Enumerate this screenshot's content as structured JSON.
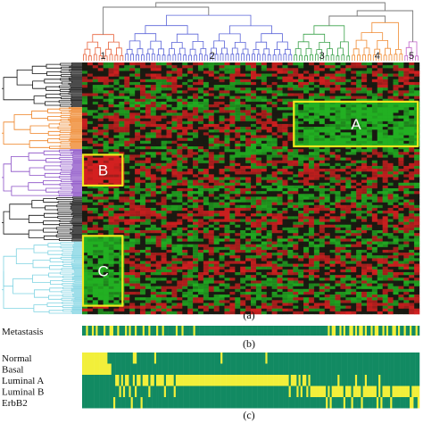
{
  "chart_data": {
    "type": "heatmap",
    "title": "",
    "xlabel": "",
    "ylabel": "",
    "colors": {
      "high": "#d32020",
      "low": "#22b022",
      "mid": "#1a1a12",
      "box": "#f0e61e",
      "track_on": "#f2ef3a",
      "track_off": "#128a62"
    },
    "column_clusters": [
      {
        "label": "1",
        "color": "#e8613a",
        "span": [
          0,
          8
        ]
      },
      {
        "label": "2",
        "color": "#5a64d8",
        "span": [
          8,
          40
        ]
      },
      {
        "label": "3",
        "color": "#3aa24a",
        "span": [
          40,
          51
        ]
      },
      {
        "label": "4",
        "color": "#f08a30",
        "span": [
          51,
          61
        ]
      },
      {
        "label": "5",
        "color": "#c060c8",
        "span": [
          61,
          64
        ]
      }
    ],
    "row_clusters": [
      {
        "color": "#111111",
        "span": [
          0,
          16
        ]
      },
      {
        "color": "#ee8122",
        "span": [
          16,
          31
        ]
      },
      {
        "color": "#8a4fc6",
        "span": [
          31,
          48
        ]
      },
      {
        "color": "#111111",
        "span": [
          48,
          64
        ]
      },
      {
        "color": "#7fd3e2",
        "span": [
          64,
          90
        ]
      }
    ],
    "boxes": [
      {
        "label": "A",
        "col_span": [
          40,
          64
        ],
        "row_span": [
          14,
          30
        ]
      },
      {
        "label": "B",
        "col_span": [
          0,
          8
        ],
        "row_span": [
          33,
          44
        ]
      },
      {
        "label": "C",
        "col_span": [
          0,
          8
        ],
        "row_span": [
          62,
          87
        ]
      }
    ],
    "panel_labels": {
      "heatmap": "(a)",
      "metastasis": "(b)",
      "subtypes": "(c)"
    },
    "metastasis_track": {
      "label": "Metastasis",
      "values": [
        0,
        0,
        1,
        0,
        0,
        1,
        0,
        1,
        0,
        0,
        0,
        1,
        0,
        0,
        1,
        1,
        0,
        0,
        1,
        0,
        0,
        0,
        1,
        0,
        1,
        0,
        0,
        1,
        0,
        0,
        0,
        1,
        0,
        0,
        1,
        0,
        0,
        0,
        1,
        0,
        0,
        1,
        0,
        0,
        0,
        0,
        0,
        0,
        1,
        0,
        0,
        1,
        0,
        0,
        0,
        0,
        0,
        1,
        0,
        0,
        0,
        0,
        0,
        0,
        0,
        0,
        0,
        0,
        0,
        0,
        0,
        0,
        0,
        0,
        0,
        0,
        0,
        0,
        0,
        0,
        0,
        0,
        0,
        0,
        0,
        0,
        0,
        0,
        0,
        0,
        0,
        0,
        0,
        0,
        0,
        0,
        0,
        0,
        0,
        0,
        0,
        0,
        0,
        0,
        0,
        0,
        0,
        0,
        0,
        0,
        0,
        0,
        0,
        0,
        0,
        0,
        0,
        0,
        0,
        0,
        0,
        0,
        0,
        0,
        0,
        0,
        1,
        0,
        1,
        1,
        0,
        0,
        1,
        0,
        1,
        0,
        0,
        1,
        1,
        0,
        1,
        0,
        1,
        1,
        0,
        1,
        0,
        0,
        1,
        0,
        1,
        1,
        0,
        0,
        1,
        0,
        1,
        0,
        0,
        1,
        1,
        0,
        1,
        0,
        0,
        1,
        0,
        0,
        1,
        0,
        0,
        1,
        0
      ]
    },
    "subtype_tracks": [
      {
        "label": "Normal",
        "values": [
          1,
          1,
          1,
          1,
          1,
          1,
          1,
          1,
          1,
          1,
          1,
          1,
          1,
          0,
          0,
          0,
          0,
          0,
          0,
          0,
          0,
          0,
          0,
          0,
          0,
          0,
          1,
          1,
          0,
          0,
          0,
          0,
          0,
          0,
          0,
          0,
          0,
          1,
          0,
          0,
          0,
          0,
          0,
          0,
          0,
          0,
          0,
          0,
          0,
          0,
          0,
          0,
          0,
          0,
          0,
          0,
          0,
          0,
          0,
          0,
          0,
          0,
          0,
          0,
          0,
          0,
          0,
          0,
          0,
          0,
          0,
          1,
          0,
          0,
          0,
          0,
          0,
          0,
          0,
          0,
          0,
          0,
          0,
          0,
          0,
          0,
          0,
          0,
          0,
          0,
          0,
          0,
          0,
          0,
          1,
          0,
          0,
          0,
          0,
          0,
          0,
          0,
          0,
          0,
          0,
          0,
          0,
          0,
          0,
          0,
          0,
          0,
          0,
          0,
          0,
          0,
          0,
          0,
          0,
          0,
          0,
          0,
          0,
          0,
          0,
          0,
          0,
          0,
          0,
          0,
          0,
          0,
          0,
          0,
          0,
          0,
          0,
          0,
          0,
          0,
          0,
          0,
          0,
          0,
          0,
          0,
          0,
          0,
          0,
          0,
          0,
          0,
          0,
          0,
          0,
          0,
          0,
          0,
          0,
          0,
          0,
          0,
          0,
          0,
          0,
          0,
          0,
          0,
          0,
          0,
          0,
          0,
          0
        ]
      },
      {
        "label": "Basal",
        "values": [
          1,
          1,
          1,
          1,
          1,
          1,
          1,
          1,
          1,
          1,
          1,
          1,
          1,
          1,
          1,
          0,
          0,
          0,
          0,
          0,
          0,
          0,
          0,
          0,
          0,
          0,
          0,
          0,
          0,
          0,
          0,
          0,
          0,
          0,
          0,
          0,
          0,
          0,
          0,
          0,
          0,
          0,
          0,
          0,
          0,
          0,
          0,
          0,
          0,
          0,
          0,
          0,
          0,
          0,
          0,
          0,
          0,
          0,
          0,
          0,
          0,
          0,
          0,
          0,
          0,
          0,
          0,
          0,
          0,
          0,
          0,
          0,
          0,
          0,
          0,
          0,
          0,
          0,
          0,
          0,
          0,
          0,
          0,
          0,
          0,
          0,
          0,
          0,
          0,
          0,
          0,
          0,
          0,
          0,
          0,
          0,
          0,
          0,
          0,
          0,
          0,
          0,
          0,
          0,
          0,
          0,
          0,
          0,
          0,
          0,
          0,
          0,
          0,
          0,
          0,
          0,
          0,
          0,
          0,
          0,
          0,
          0,
          0,
          0,
          0,
          0,
          0,
          0,
          0,
          0,
          0,
          0,
          0,
          0,
          0,
          0,
          0,
          0,
          0,
          0,
          0,
          0,
          0,
          0,
          0,
          0,
          0,
          0,
          0,
          0,
          0,
          0,
          0,
          0,
          0,
          0,
          0,
          0,
          0,
          0,
          0,
          0,
          0,
          0,
          0,
          0,
          0,
          0,
          0,
          0,
          0,
          0,
          0
        ]
      },
      {
        "label": "Luminal A",
        "values": [
          0,
          0,
          0,
          0,
          0,
          0,
          0,
          0,
          0,
          0,
          0,
          0,
          0,
          0,
          0,
          0,
          0,
          1,
          1,
          0,
          1,
          0,
          1,
          1,
          0,
          0,
          1,
          0,
          1,
          1,
          0,
          1,
          1,
          1,
          0,
          1,
          1,
          0,
          1,
          1,
          1,
          1,
          0,
          1,
          1,
          1,
          1,
          0,
          1,
          1,
          1,
          1,
          1,
          1,
          1,
          1,
          1,
          1,
          1,
          1,
          1,
          1,
          1,
          1,
          1,
          1,
          1,
          1,
          1,
          1,
          1,
          1,
          1,
          1,
          1,
          1,
          1,
          1,
          1,
          1,
          1,
          1,
          1,
          1,
          1,
          1,
          1,
          1,
          1,
          1,
          1,
          1,
          1,
          1,
          1,
          1,
          1,
          1,
          1,
          1,
          1,
          1,
          1,
          1,
          1,
          1,
          0,
          1,
          1,
          1,
          0,
          1,
          0,
          1,
          1,
          0,
          1,
          0,
          0,
          0,
          0,
          0,
          0,
          0,
          0,
          0,
          0,
          0,
          0,
          0,
          0,
          1,
          0,
          0,
          0,
          0,
          0,
          0,
          0,
          0,
          1,
          0,
          0,
          0,
          0,
          1,
          0,
          0,
          0,
          0,
          0,
          0,
          1,
          0,
          0,
          0,
          0,
          0,
          0,
          0,
          0,
          0,
          0,
          0,
          0,
          0,
          0,
          0,
          0,
          0,
          0,
          0,
          0
        ]
      },
      {
        "label": "Luminal B",
        "values": [
          0,
          0,
          0,
          0,
          0,
          0,
          0,
          0,
          0,
          0,
          0,
          0,
          0,
          0,
          0,
          0,
          0,
          0,
          0,
          1,
          0,
          1,
          0,
          0,
          1,
          0,
          0,
          1,
          0,
          0,
          0,
          0,
          0,
          0,
          1,
          0,
          0,
          0,
          0,
          0,
          0,
          0,
          1,
          0,
          0,
          0,
          0,
          1,
          0,
          0,
          0,
          0,
          0,
          0,
          0,
          0,
          0,
          0,
          0,
          0,
          0,
          0,
          0,
          0,
          0,
          0,
          0,
          0,
          0,
          0,
          0,
          0,
          0,
          0,
          0,
          0,
          0,
          0,
          0,
          0,
          0,
          0,
          0,
          0,
          0,
          0,
          0,
          0,
          0,
          0,
          0,
          0,
          0,
          0,
          0,
          0,
          0,
          0,
          0,
          0,
          0,
          0,
          0,
          0,
          0,
          0,
          1,
          0,
          0,
          0,
          1,
          0,
          1,
          0,
          0,
          1,
          0,
          1,
          1,
          1,
          1,
          1,
          1,
          1,
          1,
          0,
          1,
          0,
          1,
          1,
          1,
          1,
          1,
          1,
          0,
          1,
          1,
          1,
          0,
          1,
          1,
          1,
          1,
          0,
          1,
          1,
          1,
          1,
          1,
          1,
          1,
          0,
          1,
          0,
          1,
          1,
          1,
          1,
          0,
          1,
          1,
          1,
          1,
          1,
          1,
          1,
          1,
          1,
          0,
          1,
          1,
          1,
          1
        ]
      },
      {
        "label": "ErbB2",
        "values": [
          0,
          0,
          0,
          0,
          0,
          0,
          0,
          0,
          0,
          0,
          0,
          0,
          0,
          0,
          0,
          0,
          1,
          0,
          0,
          0,
          0,
          0,
          0,
          0,
          0,
          1,
          0,
          0,
          0,
          0,
          1,
          0,
          0,
          0,
          0,
          0,
          0,
          0,
          0,
          0,
          0,
          0,
          0,
          0,
          0,
          0,
          0,
          0,
          0,
          0,
          0,
          0,
          0,
          0,
          0,
          0,
          0,
          0,
          0,
          0,
          0,
          0,
          0,
          0,
          0,
          0,
          0,
          0,
          0,
          0,
          0,
          0,
          0,
          0,
          0,
          0,
          0,
          0,
          0,
          0,
          0,
          0,
          0,
          0,
          0,
          0,
          0,
          0,
          0,
          0,
          0,
          0,
          0,
          0,
          0,
          0,
          0,
          0,
          0,
          0,
          0,
          0,
          0,
          0,
          0,
          0,
          0,
          0,
          0,
          0,
          0,
          0,
          0,
          0,
          0,
          0,
          0,
          0,
          0,
          0,
          0,
          0,
          0,
          0,
          0,
          1,
          0,
          1,
          0,
          0,
          0,
          0,
          0,
          0,
          1,
          0,
          0,
          0,
          1,
          0,
          0,
          0,
          0,
          1,
          0,
          0,
          0,
          0,
          0,
          0,
          0,
          1,
          0,
          1,
          0,
          0,
          0,
          0,
          1,
          0,
          0,
          0,
          0,
          0,
          0,
          0,
          0,
          0,
          1,
          1,
          0,
          0,
          1
        ]
      }
    ]
  }
}
